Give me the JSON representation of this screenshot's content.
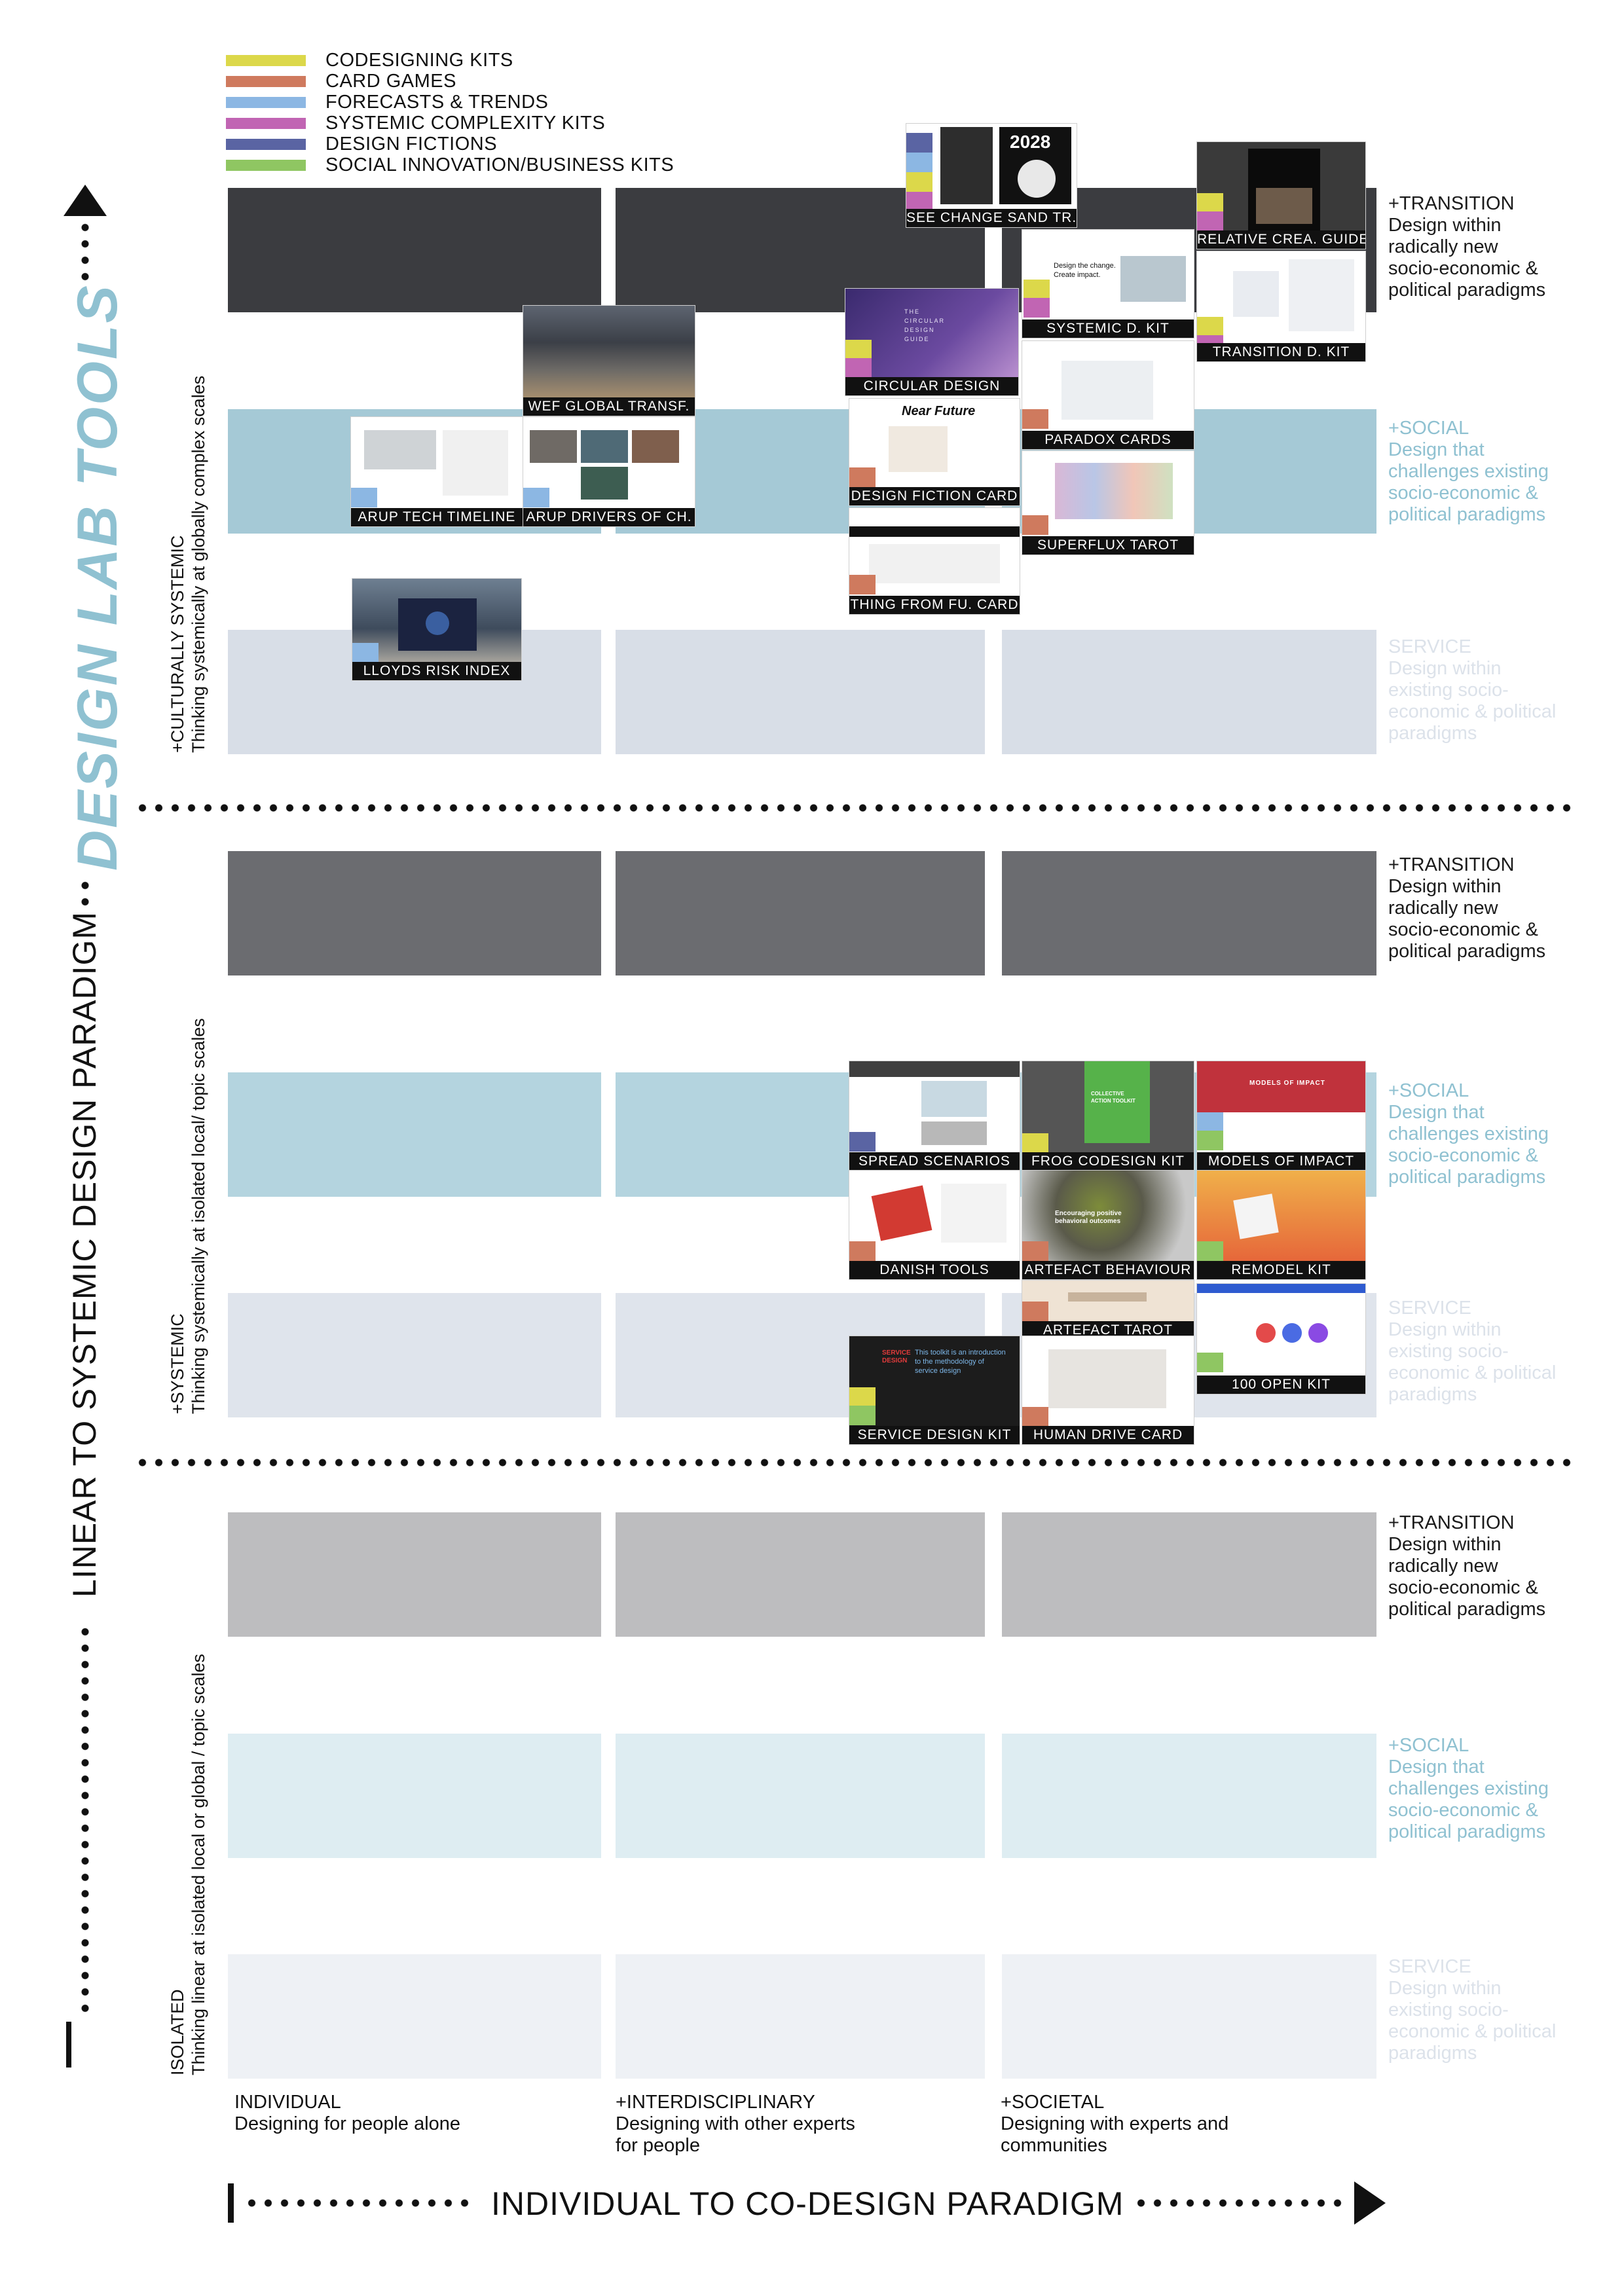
{
  "legend": [
    {
      "label": "CODESIGNING KITS",
      "color": "#dcd84a"
    },
    {
      "label": "CARD GAMES",
      "color": "#cf7a5e"
    },
    {
      "label": "FORECASTS & TRENDS",
      "color": "#8cb7e3"
    },
    {
      "label": "SYSTEMIC COMPLEXITY KITS",
      "color": "#c165b3"
    },
    {
      "label": "DESIGN FICTIONS",
      "color": "#5a64a3"
    },
    {
      "label": "SOCIAL INNOVATION/BUSINESS KITS",
      "color": "#8fc662"
    }
  ],
  "titles": {
    "vertical_brand": "DESIGN LAB TOOLS",
    "vertical_axis": "LINEAR TO SYSTEMIC DESIGN PARADIGM",
    "horizontal_axis": "INDIVIDUAL TO CO-DESIGN PARADIGM"
  },
  "row_labels": {
    "transition": {
      "title": "+TRANSITION",
      "lines": [
        "Design within",
        "radically new",
        "socio-economic &",
        "political paradigms"
      ]
    },
    "social": {
      "title": "+SOCIAL",
      "lines": [
        "Design that",
        "challenges existing",
        "socio-economic &",
        "political paradigms"
      ]
    },
    "service": {
      "title": "SERVICE",
      "lines": [
        "Design within",
        "existing socio-",
        "economic & political",
        "paradigms"
      ]
    }
  },
  "groups": [
    {
      "title": "+CULTURALLY SYSTEMIC",
      "subtitle": "Thinking systemically at globally complex scales"
    },
    {
      "title": "+SYSTEMIC",
      "subtitle": "Thinking systemically at isolated local/ topic scales"
    },
    {
      "title": "ISOLATED",
      "subtitle": "Thinking linear at isolated local or global / topic scales"
    }
  ],
  "columns": [
    {
      "title": "INDIVIDUAL",
      "lines": [
        "Designing for people alone"
      ]
    },
    {
      "title": "+INTERDISCIPLINARY",
      "lines": [
        "Designing with other experts",
        "for people"
      ]
    },
    {
      "title": "+SOCIETAL",
      "lines": [
        "Designing with experts and",
        "communities"
      ]
    }
  ],
  "cell_colors": {
    "g0": [
      "#3b3c40",
      "#a5c9d6",
      "#d8dee7"
    ],
    "g1": [
      "#6b6c70",
      "#b4d4df",
      "#dfe4ec"
    ],
    "g2": [
      "#bdbdbf",
      "#deedf2",
      "#eef1f5"
    ]
  },
  "tools": {
    "see_change": "SEE CHANGE SAND TR.",
    "relative_crea": "RELATIVE CREA. GUIDE",
    "systemic_d": "SYSTEMIC D. KIT",
    "transition_d": "TRANSITION D. KIT",
    "wef": "WEF GLOBAL TRANSF.",
    "circular": "CIRCULAR DESIGN",
    "paradox": "PARADOX CARDS",
    "arup_tech": "ARUP TECH TIMELINE",
    "arup_drivers": "ARUP DRIVERS OF CH.",
    "design_fiction": "DESIGN FICTION CARD",
    "superflux": "SUPERFLUX TAROT",
    "thing_from": "THING FROM FU. CARD",
    "lloyds": "LLOYDS RISK INDEX",
    "spread": "SPREAD SCENARIOS",
    "frog": "FROG CODESIGN KIT",
    "models": "MODELS OF IMPACT",
    "danish": "DANISH TOOLS",
    "artefact_b": "ARTEFACT BEHAVIOUR",
    "remodel": "REMODEL KIT",
    "artefact_t": "ARTEFACT TAROT",
    "open100": "100 OPEN KIT",
    "service_kit": "SERVICE DESIGN KIT",
    "human_drive": "HUMAN DRIVE CARD"
  },
  "thumb_text": {
    "year": "2028",
    "circular_title": "THE CIRCULAR DESIGN GUIDE",
    "design_change": "Design the change. Create impact.",
    "frog_title": "COLLECTIVE ACTION TOOLKIT",
    "models_title": "MODELS OF IMPACT",
    "service_text": "This toolkit is an introduction to the methodology of service design",
    "service_logo": "SERVICE DESIGN",
    "nearfuture": "Near Future",
    "artefact_b_text": "Encouraging positive behavioral outcomes"
  }
}
